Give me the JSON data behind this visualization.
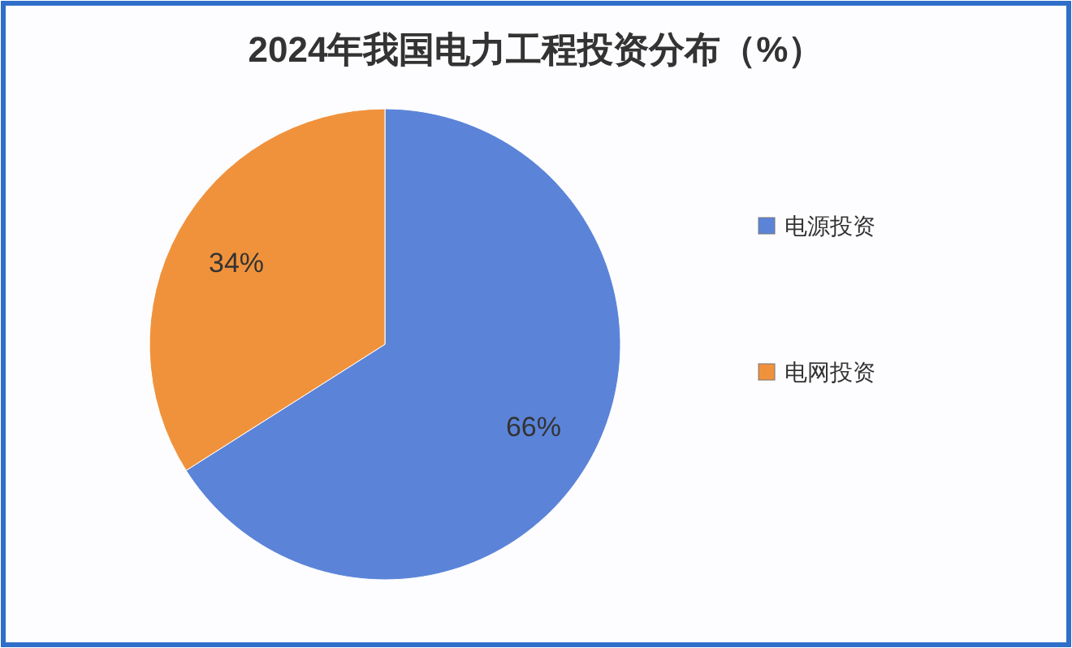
{
  "chart_data": {
    "type": "pie",
    "title": "2024年我国电力工程投资分布（%）",
    "categories": [
      "电源投资",
      "电网投资"
    ],
    "values": [
      66,
      34
    ],
    "colors": [
      "#5b84d9",
      "#f0923c"
    ],
    "value_labels": [
      "66%",
      "34%"
    ],
    "legend": "right"
  }
}
